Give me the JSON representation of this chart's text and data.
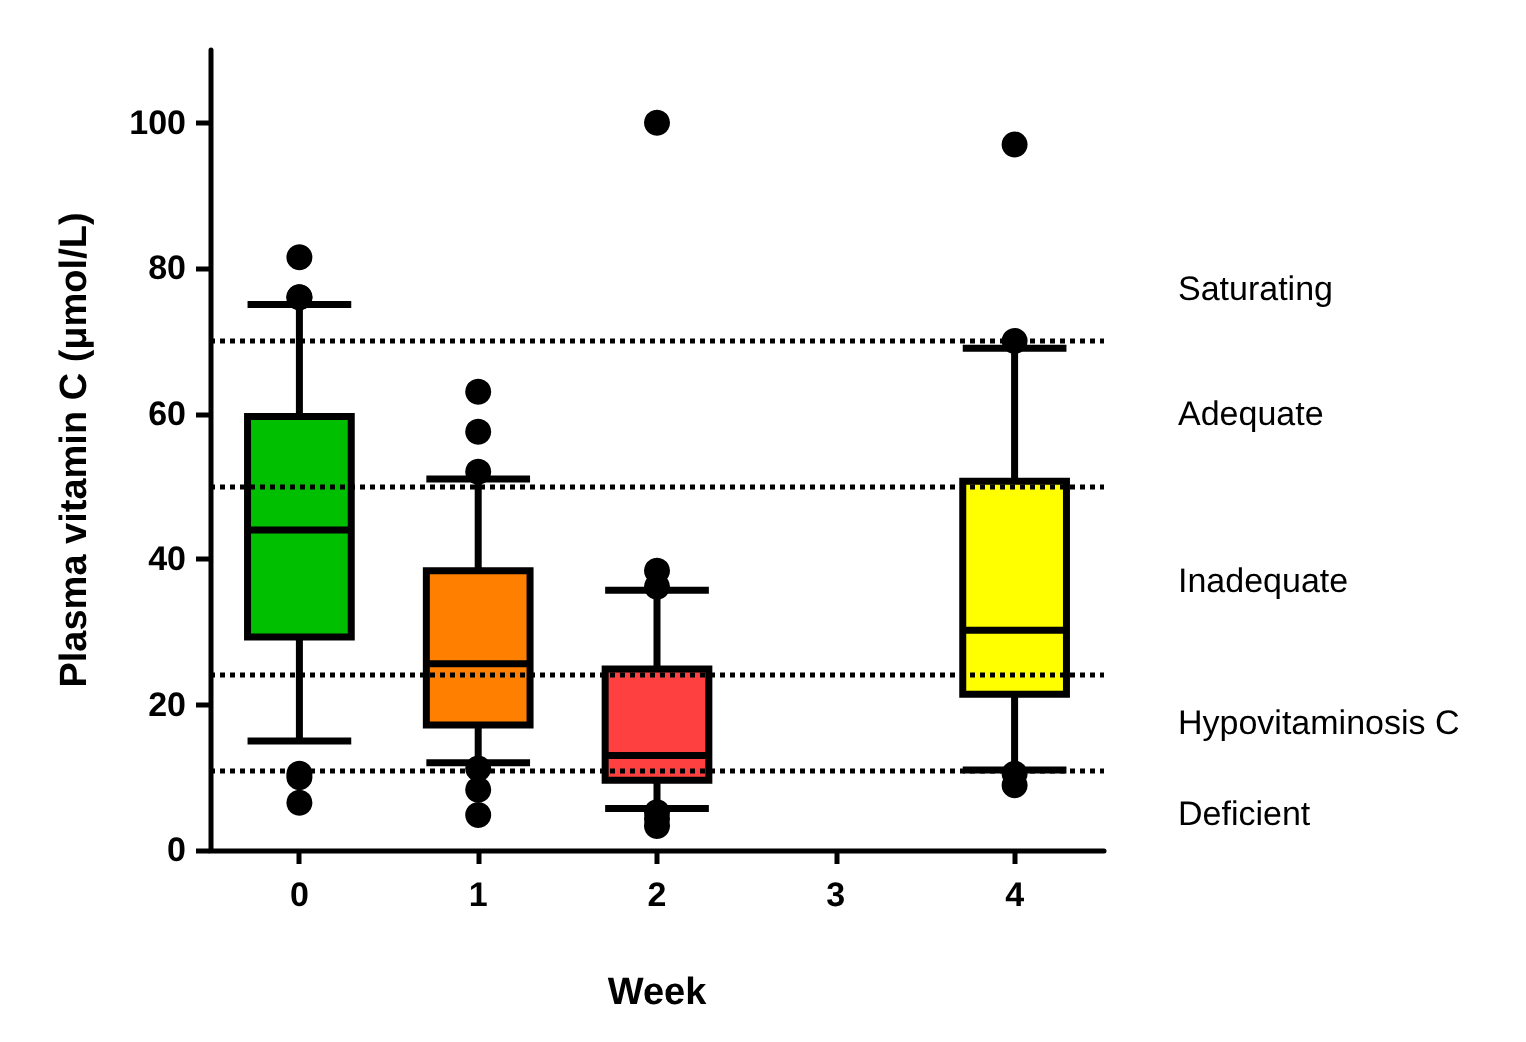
{
  "chart_data": {
    "type": "box",
    "xlabel": "Week",
    "ylabel": "Plasma vitamin C (μmol/L)",
    "categories": [
      "0",
      "1",
      "2",
      "3",
      "4"
    ],
    "colors": [
      "#00bf00",
      "#ff8000",
      "#ff4040",
      null,
      "#ffff00"
    ],
    "boxes": [
      {
        "low": 15,
        "q1": 29.3,
        "median": 44,
        "q3": 59.6,
        "high": 75,
        "outliers": [
          81.5,
          76,
          76,
          10.5,
          10,
          6.5
        ]
      },
      {
        "low": 12,
        "q1": 17.2,
        "median": 25.6,
        "q3": 38.4,
        "high": 51,
        "outliers": [
          63,
          57.5,
          52,
          11.2,
          8.3,
          4.8
        ]
      },
      {
        "low": 5.7,
        "q1": 9.6,
        "median": 13,
        "q3": 24.9,
        "high": 35.7,
        "outliers": [
          100,
          38.4,
          36.2,
          5.2,
          4.3,
          3.3
        ]
      },
      null,
      {
        "low": 11,
        "q1": 21.4,
        "median": 30.2,
        "q3": 50.7,
        "high": 69,
        "outliers": [
          97,
          70,
          10.5,
          8.9
        ]
      }
    ],
    "ylim": [
      0,
      110
    ],
    "yticks": [
      0,
      20,
      40,
      60,
      80,
      100
    ],
    "grid": false,
    "ref_lines": [
      {
        "axis": "y",
        "value": 70,
        "line_style": "dotted"
      },
      {
        "axis": "y",
        "value": 50,
        "line_style": "dotted"
      },
      {
        "axis": "y",
        "value": 24,
        "line_style": "dotted"
      },
      {
        "axis": "y",
        "value": 11,
        "line_style": "dotted"
      }
    ],
    "annotations": [
      "Saturating",
      "Adequate",
      "Inadequate",
      "Hypovitaminosis C",
      "Deficient"
    ]
  }
}
